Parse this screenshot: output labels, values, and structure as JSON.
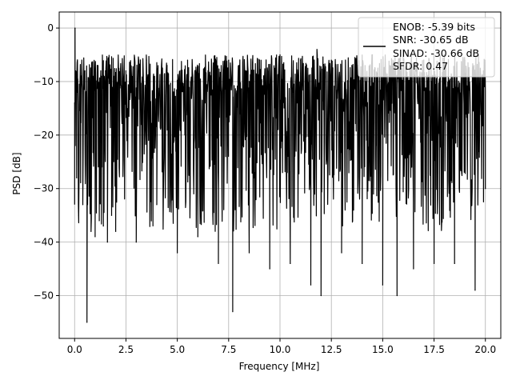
{
  "chart_data": {
    "type": "line",
    "xlabel": "Frequency [MHz]",
    "ylabel": "PSD [dB]",
    "xlim": [
      -0.75,
      20.75
    ],
    "ylim": [
      -58,
      3
    ],
    "x_ticks": [
      0.0,
      2.5,
      5.0,
      7.5,
      10.0,
      12.5,
      15.0,
      17.5,
      20.0
    ],
    "x_tick_labels": [
      "0.0",
      "2.5",
      "5.0",
      "7.5",
      "10.0",
      "12.5",
      "15.0",
      "17.5",
      "20.0"
    ],
    "y_ticks": [
      0,
      -10,
      -20,
      -30,
      -40,
      -50
    ],
    "y_tick_labels": [
      "0",
      "−10",
      "−20",
      "−30",
      "−40",
      "−50"
    ],
    "grid": true,
    "legend_position": "top-right",
    "legend_lines": [
      "ENOB: -5.39 bits",
      "SNR: -30.65 dB",
      "SINAD: -30.66 dB",
      "SFDR: 0.47"
    ],
    "line_color": "#000000",
    "series": [
      {
        "x": [
          0.0,
          0.02,
          0.05,
          0.1,
          0.15,
          0.2,
          0.3,
          0.4,
          0.5,
          0.6,
          0.7,
          0.8,
          0.9,
          1.0,
          1.1,
          1.2,
          1.3,
          1.4,
          1.5,
          1.6,
          1.7,
          1.8,
          1.9,
          2.0,
          2.5,
          3.0,
          3.5,
          4.0,
          4.5,
          5.0,
          5.5,
          6.0,
          6.5,
          7.0,
          7.5,
          7.7,
          8.0,
          8.5,
          9.0,
          9.5,
          10.0,
          10.5,
          11.0,
          11.5,
          11.8,
          12.0,
          12.5,
          13.0,
          13.5,
          14.0,
          14.5,
          15.0,
          15.5,
          15.7,
          16.0,
          16.5,
          17.0,
          17.5,
          18.0,
          18.5,
          19.0,
          19.5,
          19.9,
          20.0
        ],
        "y": [
          -14,
          0,
          -8,
          -28,
          -12,
          -35,
          -9,
          -33,
          -8,
          -55,
          -10,
          -38,
          -9,
          -39,
          -7,
          -36,
          -9,
          -37,
          -8,
          -40,
          -7,
          -35,
          -9,
          -38,
          -8,
          -40,
          -6,
          -33,
          -7,
          -42,
          -6,
          -39,
          -8,
          -44,
          -6,
          -53,
          -7,
          -42,
          -6,
          -45,
          -5,
          -44,
          -6,
          -48,
          -4,
          -50,
          -6,
          -42,
          -7,
          -44,
          -5,
          -48,
          -6,
          -50,
          -4,
          -45,
          -6,
          -44,
          -5,
          -44,
          -6,
          -49,
          -8,
          -30
        ]
      }
    ]
  }
}
